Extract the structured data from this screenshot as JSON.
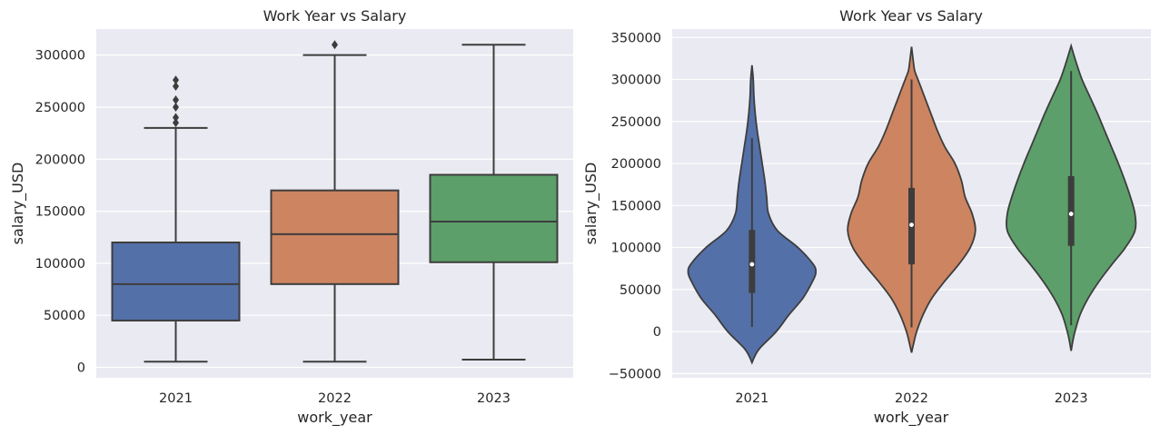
{
  "chart_data": [
    {
      "type": "box",
      "title": "Work Year vs Salary",
      "xlabel": "work_year",
      "ylabel": "salary_USD",
      "categories": [
        "2021",
        "2022",
        "2023"
      ],
      "colors": [
        "#5470a8",
        "#cd8461",
        "#5c9f6a"
      ],
      "ylim": [
        -10000,
        325000
      ],
      "yticks": [
        0,
        50000,
        100000,
        150000,
        200000,
        250000,
        300000
      ],
      "ytick_labels": [
        "0",
        "50000",
        "100000",
        "150000",
        "200000",
        "250000",
        "300000"
      ],
      "grid": true,
      "boxes": [
        {
          "category": "2021",
          "whisker_low": 5500,
          "q1": 45000,
          "median": 80000,
          "q3": 120000,
          "whisker_high": 230000,
          "outliers": [
            235000,
            240000,
            250000,
            257000,
            270000,
            276000
          ]
        },
        {
          "category": "2022",
          "whisker_low": 5500,
          "q1": 80000,
          "median": 128000,
          "q3": 170000,
          "whisker_high": 300000,
          "outliers": [
            310000
          ]
        },
        {
          "category": "2023",
          "whisker_low": 7500,
          "q1": 101000,
          "median": 140000,
          "q3": 185000,
          "whisker_high": 310000,
          "outliers": []
        }
      ]
    },
    {
      "type": "violin",
      "title": "Work Year vs Salary",
      "xlabel": "work_year",
      "ylabel": "salary_USD",
      "categories": [
        "2021",
        "2022",
        "2023"
      ],
      "colors": [
        "#5470a8",
        "#cd8461",
        "#5c9f6a"
      ],
      "ylim": [
        -55000,
        360000
      ],
      "yticks": [
        -50000,
        0,
        50000,
        100000,
        150000,
        200000,
        250000,
        300000,
        350000
      ],
      "ytick_labels": [
        "−50000",
        "0",
        "50000",
        "100000",
        "150000",
        "200000",
        "250000",
        "300000",
        "350000"
      ],
      "grid": true,
      "violins": [
        {
          "category": "2021",
          "median": 80000,
          "q1": 46000,
          "q3": 121000,
          "whisker_low": 5500,
          "whisker_high": 230000,
          "min": -37000,
          "max": 317000,
          "density_y": [
            -37000,
            -30000,
            -20000,
            0,
            20000,
            40000,
            60000,
            70000,
            80000,
            100000,
            120000,
            140000,
            160000,
            180000,
            200000,
            220000,
            240000,
            260000,
            280000,
            300000,
            317000
          ],
          "density_w": [
            0.0,
            0.04,
            0.12,
            0.38,
            0.58,
            0.8,
            0.95,
            1.0,
            0.96,
            0.72,
            0.4,
            0.26,
            0.23,
            0.2,
            0.16,
            0.12,
            0.08,
            0.05,
            0.03,
            0.02,
            0.0
          ]
        },
        {
          "category": "2022",
          "median": 127000,
          "q1": 80000,
          "q3": 171000,
          "whisker_low": 5000,
          "whisker_high": 300000,
          "min": -25000,
          "max": 339000,
          "density_y": [
            -25000,
            -15000,
            0,
            20000,
            40000,
            60000,
            80000,
            100000,
            120000,
            140000,
            160000,
            180000,
            200000,
            220000,
            240000,
            260000,
            280000,
            300000,
            310000,
            320000,
            339000
          ],
          "density_w": [
            0.0,
            0.03,
            0.08,
            0.18,
            0.32,
            0.52,
            0.74,
            0.92,
            1.0,
            0.95,
            0.84,
            0.78,
            0.68,
            0.52,
            0.4,
            0.3,
            0.2,
            0.1,
            0.05,
            0.03,
            0.0
          ]
        },
        {
          "category": "2023",
          "median": 140000,
          "q1": 102000,
          "q3": 185000,
          "whisker_low": 7500,
          "whisker_high": 310000,
          "min": -23000,
          "max": 340000,
          "density_y": [
            -23000,
            -10000,
            0,
            20000,
            40000,
            60000,
            80000,
            100000,
            120000,
            140000,
            160000,
            180000,
            200000,
            220000,
            240000,
            260000,
            280000,
            300000,
            320000,
            340000
          ],
          "density_w": [
            0.0,
            0.03,
            0.06,
            0.14,
            0.27,
            0.44,
            0.64,
            0.85,
            1.0,
            1.0,
            0.93,
            0.84,
            0.74,
            0.63,
            0.52,
            0.41,
            0.29,
            0.17,
            0.08,
            0.0
          ]
        }
      ]
    }
  ]
}
